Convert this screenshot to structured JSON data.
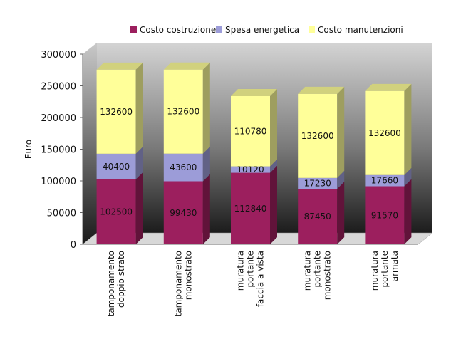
{
  "chart_data": {
    "type": "bar",
    "stacked": true,
    "three_d": true,
    "categories": [
      [
        "tamponamento",
        "doppio strato"
      ],
      [
        "tamponamento",
        "monostrato"
      ],
      [
        "muratura",
        "portante",
        "faccia a vista"
      ],
      [
        "muratura",
        "portante",
        "monostrato"
      ],
      [
        "muratura",
        "portante",
        "armata"
      ]
    ],
    "series": [
      {
        "name": "Costo costruzione",
        "values": [
          102500,
          99430,
          112840,
          87450,
          91570
        ],
        "labels": [
          "102500",
          "99430",
          "112840",
          "87450",
          "91570"
        ],
        "color": "#9c1f5e"
      },
      {
        "name": "Spesa energetica",
        "values": [
          40400,
          43600,
          10120,
          17230,
          17660
        ],
        "labels": [
          "40400",
          "43600",
          "10120",
          "17230",
          "17660"
        ],
        "color": "#9c9cd8"
      },
      {
        "name": "Costo manutenzioni",
        "values": [
          132600,
          132600,
          110780,
          132600,
          132600
        ],
        "labels": [
          "132600",
          "132600",
          "110780",
          "132600",
          "132600"
        ],
        "color": "#ffff99"
      }
    ],
    "title": "",
    "xlabel": "",
    "ylabel": "Euro",
    "ylim": [
      0,
      300000
    ],
    "yticks": [
      "0",
      "50000",
      "100000",
      "150000",
      "200000",
      "250000",
      "300000"
    ],
    "grid": false,
    "legend_position": "top"
  }
}
